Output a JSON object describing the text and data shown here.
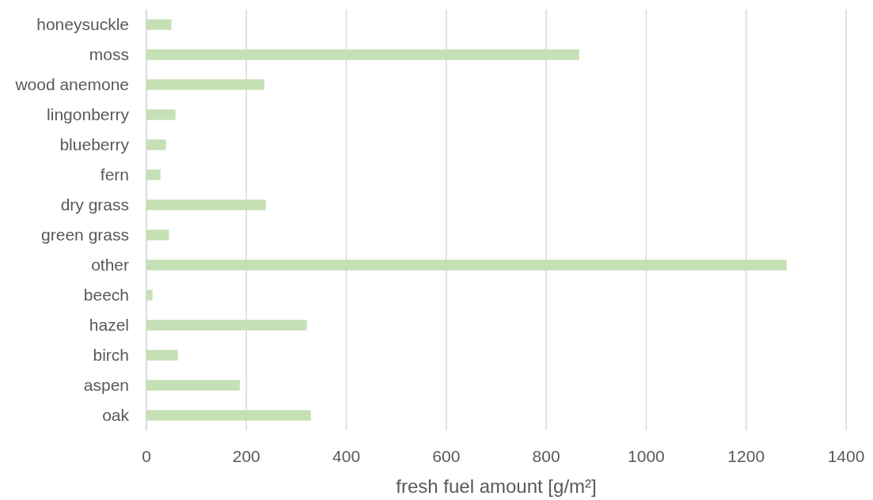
{
  "chart_data": {
    "type": "bar",
    "orientation": "horizontal",
    "xlabel": "fresh fuel amount [g/m²]",
    "categories": [
      "honeysuckle",
      "moss",
      "wood anemone",
      "lingonberry",
      "blueberry",
      "fern",
      "dry grass",
      "green grass",
      "other",
      "beech",
      "hazel",
      "birch",
      "aspen",
      "oak"
    ],
    "values": [
      50,
      866,
      236,
      58,
      39,
      28,
      239,
      45,
      1281,
      12,
      321,
      63,
      187,
      329
    ],
    "color": "#c5e0b4",
    "xlim": [
      0,
      1400
    ],
    "xticks": [
      0,
      200,
      400,
      600,
      800,
      1000,
      1200,
      1400
    ],
    "grid": "x"
  }
}
